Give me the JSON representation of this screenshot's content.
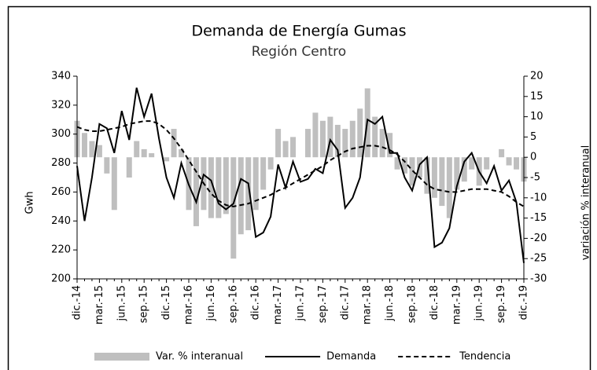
{
  "chart_data": {
    "type": "combo",
    "title": "Demanda de Energía Gumas",
    "subtitle": "Región Centro",
    "ylabel": "Gwh",
    "y2label": "variación % interanual",
    "categories": [
      "dic.-14",
      null,
      null,
      "mar.-15",
      null,
      null,
      "jun.-15",
      null,
      null,
      "sep.-15",
      null,
      null,
      "dic.-15",
      null,
      null,
      "mar.-16",
      null,
      null,
      "jun.-16",
      null,
      null,
      "sep.-16",
      null,
      null,
      "dic.-16",
      null,
      null,
      "mar.-17",
      null,
      null,
      "jun.-17",
      null,
      null,
      "sep.-17",
      null,
      null,
      "dic.-17",
      null,
      null,
      "mar.-18",
      null,
      null,
      "jun.-18",
      null,
      null,
      "sep.-18",
      null,
      null,
      "dic.-18",
      null,
      null,
      "mar.-19",
      null,
      null,
      "jun.-19",
      null,
      null,
      "sep.-19",
      null,
      null,
      "dic.-19"
    ],
    "ylim": [
      200,
      340
    ],
    "yticks": [
      200,
      220,
      240,
      260,
      280,
      300,
      320,
      340
    ],
    "y2lim": [
      -30,
      20
    ],
    "y2ticks": [
      -30,
      -25,
      -20,
      -15,
      -10,
      -5,
      0,
      5,
      10,
      15,
      20
    ],
    "series": [
      {
        "name": "Var. % interanual",
        "type": "bar",
        "axis": "y2",
        "color": "#bfbfbf",
        "values": [
          9,
          6,
          4,
          3,
          -4,
          -13,
          0,
          -5,
          4,
          2,
          1,
          0,
          -1,
          7,
          2,
          -13,
          -17,
          -13,
          -15,
          -15,
          -14,
          -25,
          -19,
          -18,
          -13,
          -8,
          -3,
          7,
          4,
          5,
          0,
          7,
          11,
          9,
          10,
          8,
          7,
          9,
          12,
          17,
          10,
          7,
          6,
          -3,
          -4,
          -7,
          -5,
          -9,
          -10,
          -12,
          -15,
          -8,
          -6,
          -3,
          -7,
          -3,
          0,
          2,
          -2,
          -3,
          -6
        ]
      },
      {
        "name": "Demanda",
        "type": "line",
        "color": "#000000",
        "dash": false,
        "values": [
          278,
          240,
          270,
          307,
          304,
          287,
          316,
          296,
          332,
          312,
          328,
          297,
          270,
          256,
          280,
          265,
          253,
          272,
          268,
          252,
          248,
          252,
          269,
          266,
          229,
          232,
          243,
          279,
          263,
          281,
          267,
          269,
          276,
          273,
          296,
          289,
          249,
          256,
          270,
          310,
          307,
          312,
          287,
          287,
          270,
          261,
          279,
          284,
          222,
          225,
          235,
          264,
          281,
          287,
          274,
          266,
          278,
          261,
          268,
          253,
          211
        ]
      },
      {
        "name": "Tendencia",
        "type": "line",
        "color": "#000000",
        "dash": true,
        "values": [
          305,
          303,
          302,
          302,
          303,
          304,
          305,
          307,
          308,
          309,
          309,
          307,
          303,
          297,
          290,
          282,
          274,
          266,
          259,
          254,
          251,
          250,
          251,
          252,
          254,
          256,
          258,
          261,
          263,
          266,
          269,
          272,
          275,
          278,
          282,
          285,
          288,
          290,
          291,
          292,
          292,
          291,
          289,
          286,
          281,
          275,
          270,
          265,
          262,
          261,
          260,
          260,
          261,
          262,
          262,
          262,
          261,
          260,
          257,
          253,
          250
        ]
      }
    ]
  }
}
